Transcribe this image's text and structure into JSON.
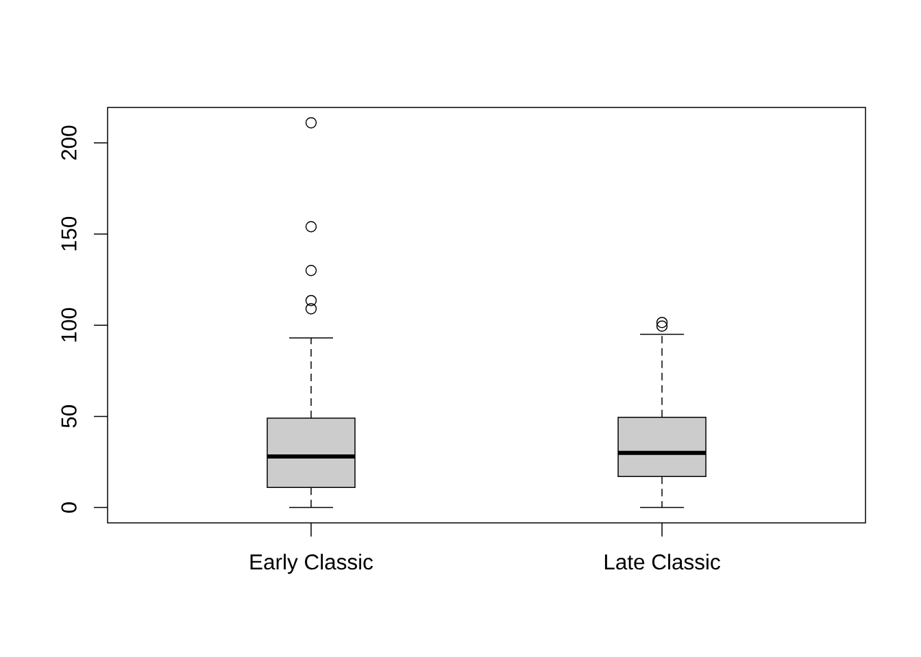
{
  "chart_data": {
    "type": "box",
    "categories": [
      "Early Classic",
      "Late Classic"
    ],
    "color": "#cccccc",
    "boxes": [
      {
        "low": 0,
        "q1": 11,
        "median": 28,
        "q3": 49,
        "high": 93,
        "outliers": [
          109,
          113.5,
          130,
          154,
          211
        ]
      },
      {
        "low": 0,
        "q1": 17,
        "median": 30,
        "q3": 49.5,
        "high": 95,
        "outliers": [
          99.5,
          101.5
        ]
      }
    ],
    "ylim": [
      -8.4,
      219.4
    ],
    "yticks": [
      0,
      50,
      100,
      150,
      200
    ]
  }
}
